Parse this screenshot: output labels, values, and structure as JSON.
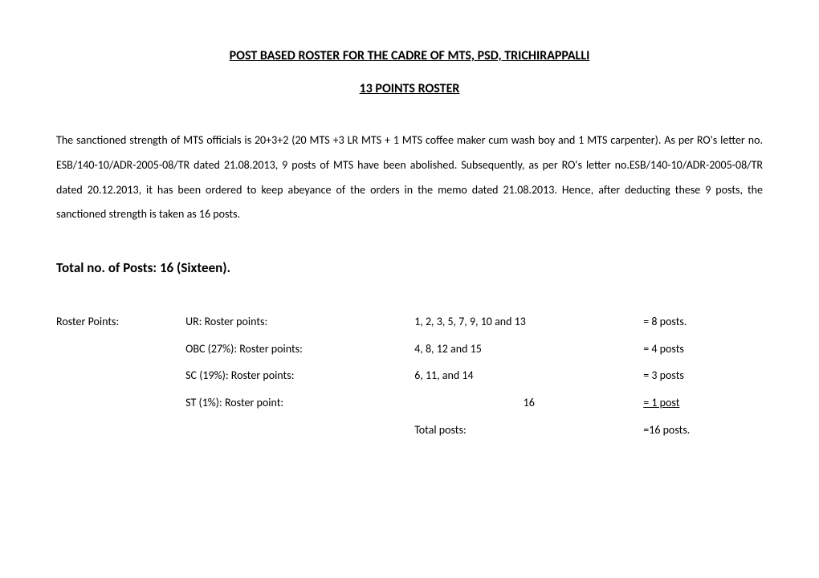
{
  "title": "POST BASED ROSTER FOR THE CADRE OF MTS, PSD, TRICHIRAPPALLI",
  "subtitle": "13 POINTS ROSTER",
  "paragraph": "The sanctioned strength of MTS officials is 20+3+2 (20 MTS +3 LR MTS + 1 MTS coffee maker cum wash boy and 1 MTS carpenter).  As per RO's letter no. ESB/140-10/ADR-2005-08/TR dated 21.08.2013, 9 posts of MTS have been abolished.  Subsequently, as per RO's letter no.ESB/140-10/ADR-2005-08/TR dated 20.12.2013, it has been ordered to keep abeyance of the orders in the memo dated 21.08.2013.  Hence, after deducting these 9 posts, the sanctioned strength is taken as 16 posts.",
  "total_posts": "Total no. of Posts: 16 (Sixteen).",
  "roster_label": "Roster Points:",
  "rows": [
    {
      "category": "UR:  Roster points:",
      "points": "1, 2, 3, 5, 7, 9, 10 and 13",
      "count": "= 8 posts."
    },
    {
      "category": "OBC (27%): Roster points:",
      "points": "4, 8, 12 and 15",
      "count": "= 4 posts"
    },
    {
      "category": "SC (19%): Roster points:",
      "points": "6, 11, and 14",
      "count": "= 3 posts"
    },
    {
      "category": "ST (1%): Roster point:",
      "points": "16",
      "count": "= 1 post"
    },
    {
      "category": "",
      "points": "Total posts:",
      "count": "=16 posts."
    }
  ]
}
